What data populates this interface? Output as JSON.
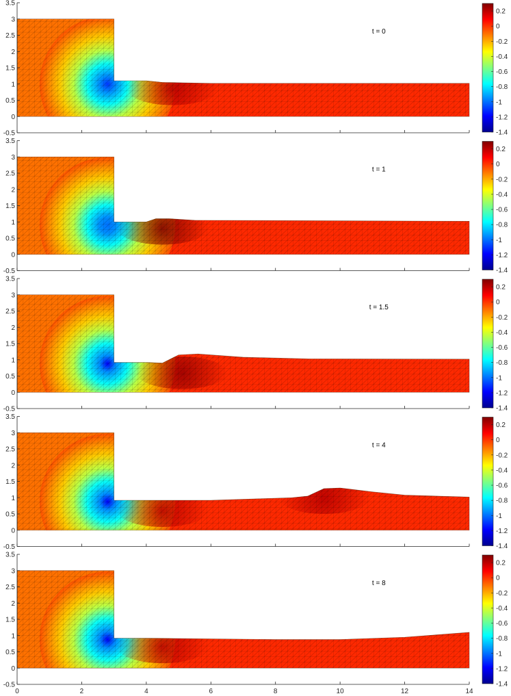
{
  "chart_data": {
    "type": "heatmap",
    "layout": "vertical stack of 5 panels sharing x axis, each with its own colorbar",
    "colormap": "jet",
    "mesh_overlay": "triangular finite-element mesh lines",
    "x_ticks": [
      0,
      2,
      4,
      6,
      8,
      10,
      12,
      14
    ],
    "xlim": [
      0,
      14
    ],
    "y_ticks": [
      -0.5,
      0,
      0.5,
      1,
      1.5,
      2,
      2.5,
      3,
      3.5
    ],
    "ylim": [
      -0.5,
      3.5
    ],
    "colorbar": {
      "range": [
        -1.4,
        0.3
      ],
      "ticks": [
        0.2,
        0,
        -0.2,
        -0.4,
        -0.6,
        -0.8,
        -1,
        -1.2,
        -1.4
      ],
      "colors": [
        "#00008f",
        "#0000ff",
        "#0080ff",
        "#00ffff",
        "#80ff80",
        "#ffff00",
        "#ff8000",
        "#ff0000",
        "#800000"
      ]
    },
    "domain": {
      "reservoir": {
        "x": [
          0,
          3
        ],
        "y": [
          0,
          3
        ]
      },
      "channel": {
        "x": [
          3,
          14
        ],
        "y": [
          0,
          1
        ]
      }
    },
    "panels": [
      {
        "label": "t = 0",
        "surface": [
          [
            3,
            1.1
          ],
          [
            4,
            1.1
          ],
          [
            4.5,
            1.05
          ],
          [
            6,
            1.02
          ],
          [
            14,
            1.02
          ]
        ],
        "vortex": {
          "x": 2.8,
          "y": 1.0,
          "value": -1.1
        },
        "hot": [
          {
            "x": 4.8,
            "y": 0.85,
            "value": 0.2
          }
        ]
      },
      {
        "label": "t = 1",
        "surface": [
          [
            3,
            1.0
          ],
          [
            4,
            1.0
          ],
          [
            4.3,
            1.1
          ],
          [
            4.7,
            1.1
          ],
          [
            5.5,
            1.05
          ],
          [
            14,
            1.02
          ]
        ],
        "vortex": {
          "x": 2.8,
          "y": 0.9,
          "value": -1.0
        },
        "hot": [
          {
            "x": 4.5,
            "y": 0.8,
            "value": 0.3
          }
        ]
      },
      {
        "label": "t = 1.5",
        "surface": [
          [
            3,
            0.92
          ],
          [
            4,
            0.92
          ],
          [
            4.5,
            0.9
          ],
          [
            5,
            1.15
          ],
          [
            5.6,
            1.18
          ],
          [
            7,
            1.08
          ],
          [
            9,
            1.03
          ],
          [
            14,
            1.02
          ]
        ],
        "vortex": {
          "x": 2.8,
          "y": 0.88,
          "value": -1.2
        },
        "hot": [
          {
            "x": 5.1,
            "y": 0.6,
            "value": 0.25
          }
        ]
      },
      {
        "label": "t = 4",
        "surface": [
          [
            3,
            0.92
          ],
          [
            6,
            0.92
          ],
          [
            8.5,
            1.0
          ],
          [
            9,
            1.05
          ],
          [
            9.5,
            1.28
          ],
          [
            10,
            1.3
          ],
          [
            11,
            1.18
          ],
          [
            12,
            1.08
          ],
          [
            14,
            1.02
          ]
        ],
        "vortex": {
          "x": 2.8,
          "y": 0.88,
          "value": -1.2
        },
        "hot": [
          {
            "x": 4.5,
            "y": 0.6,
            "value": 0.2
          },
          {
            "x": 9.5,
            "y": 1.0,
            "value": 0.2
          }
        ]
      },
      {
        "label": "t = 8",
        "surface": [
          [
            3,
            0.92
          ],
          [
            4,
            0.92
          ],
          [
            8,
            0.88
          ],
          [
            10,
            0.88
          ],
          [
            12,
            0.95
          ],
          [
            14,
            1.1
          ]
        ],
        "vortex": {
          "x": 2.8,
          "y": 0.88,
          "value": -1.2
        },
        "hot": [
          {
            "x": 4.5,
            "y": 0.65,
            "value": 0.2
          }
        ]
      }
    ]
  }
}
